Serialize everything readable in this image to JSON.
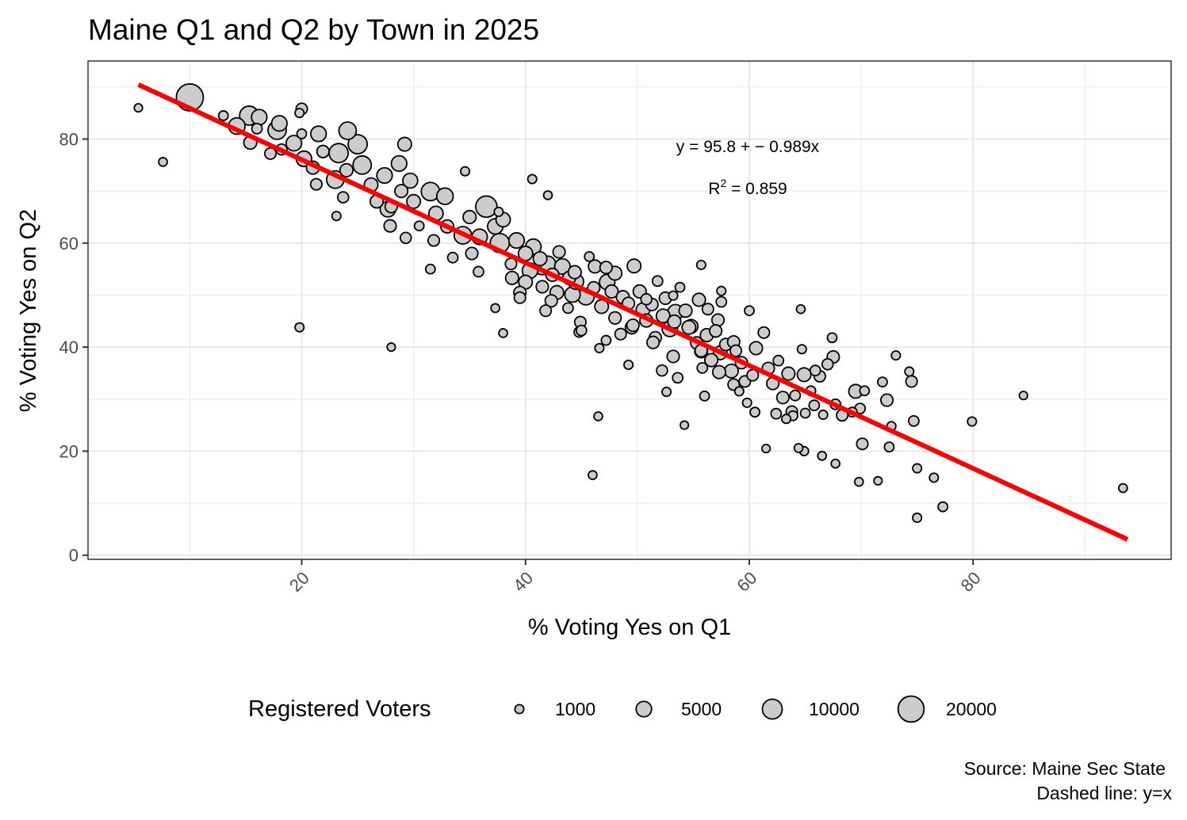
{
  "chart_data": {
    "type": "scatter",
    "title": "Maine Q1 and Q2 by Town in 2025",
    "xlabel": "% Voting Yes on Q1",
    "ylabel": "% Voting Yes on Q2",
    "xlim": [
      0.9,
      97.7
    ],
    "ylim": [
      -0.8,
      95
    ],
    "x_ticks": [
      20,
      40,
      60,
      80
    ],
    "x_tick_labels": [
      "20",
      "40",
      "60",
      "80"
    ],
    "y_ticks": [
      0,
      20,
      40,
      60,
      80
    ],
    "y_tick_labels": [
      "0",
      "20",
      "40",
      "60",
      "80"
    ],
    "grid": true,
    "fit": {
      "intercept": 95.8,
      "slope": -0.989,
      "x_range": [
        5.4,
        93.8
      ],
      "color": "#FF0000"
    },
    "annotations": {
      "equation": "y = 95.8 + − 0.989x",
      "r2_label": "R",
      "r2_sup": "2",
      "r2_value": " = 0.859"
    },
    "legend": {
      "title": "Registered Voters",
      "placement": "bottom",
      "entries": [
        {
          "label": "1000",
          "value": 1000
        },
        {
          "label": "5000",
          "value": 5000
        },
        {
          "label": "10000",
          "value": 10000
        },
        {
          "label": "20000",
          "value": 20000
        }
      ]
    },
    "point_fill": "#CCCCCC",
    "point_stroke": "#000000",
    "caption_lines": [
      "Source: Maine Sec State",
      "Dashed line: y=x"
    ],
    "points": [
      [
        5.4,
        86,
        800
      ],
      [
        7.6,
        75.6,
        900
      ],
      [
        10,
        88,
        22000
      ],
      [
        13,
        84.5,
        1200
      ],
      [
        14.2,
        82.5,
        6000
      ],
      [
        15.3,
        84.5,
        9000
      ],
      [
        16.2,
        84.2,
        5000
      ],
      [
        15.4,
        79.3,
        3000
      ],
      [
        16,
        82,
        1500
      ],
      [
        17.2,
        77.2,
        2000
      ],
      [
        17.8,
        81.7,
        8000
      ],
      [
        18,
        83,
        5000
      ],
      [
        18.2,
        78,
        1800
      ],
      [
        19.3,
        79.2,
        5000
      ],
      [
        20,
        85.8,
        2000
      ],
      [
        19.8,
        85,
        1000
      ],
      [
        20,
        81,
        1200
      ],
      [
        20.2,
        76.2,
        5000
      ],
      [
        21,
        74.5,
        3000
      ],
      [
        21.3,
        71.3,
        2000
      ],
      [
        21.9,
        77.6,
        2500
      ],
      [
        21.5,
        81,
        5000
      ],
      [
        23,
        72.2,
        7000
      ],
      [
        23.3,
        77.3,
        9000
      ],
      [
        24.1,
        81.6,
        7000
      ],
      [
        24,
        74,
        3000
      ],
      [
        23.7,
        68.8,
        1800
      ],
      [
        23.1,
        65.2,
        1000
      ],
      [
        25,
        79,
        9000
      ],
      [
        25.4,
        75,
        8000
      ],
      [
        26.2,
        71.2,
        3500
      ],
      [
        26.7,
        68,
        3000
      ],
      [
        27.4,
        73,
        5000
      ],
      [
        27.7,
        66.5,
        5000
      ],
      [
        28,
        67,
        2500
      ],
      [
        27.9,
        63.3,
        2500
      ],
      [
        28.9,
        70,
        3000
      ],
      [
        28.7,
        75.3,
        5000
      ],
      [
        29.2,
        79,
        3500
      ],
      [
        29.7,
        72,
        4500
      ],
      [
        30,
        68,
        3500
      ],
      [
        29.3,
        61,
        1800
      ],
      [
        30.5,
        63.3,
        1200
      ],
      [
        31.5,
        69.9,
        8000
      ],
      [
        32,
        65.7,
        4000
      ],
      [
        32.8,
        69,
        6000
      ],
      [
        33,
        63.2,
        3000
      ],
      [
        31.8,
        60.5,
        2000
      ],
      [
        31.5,
        55,
        1200
      ],
      [
        33.5,
        57.2,
        1500
      ],
      [
        34.4,
        61.5,
        7000
      ],
      [
        35,
        65,
        3000
      ],
      [
        34.6,
        73.8,
        1000
      ],
      [
        35.2,
        58,
        2500
      ],
      [
        35.9,
        61.2,
        5000
      ],
      [
        35.8,
        54.5,
        1500
      ],
      [
        36.5,
        67,
        12000
      ],
      [
        37.3,
        63.2,
        5000
      ],
      [
        37.7,
        60,
        9000
      ],
      [
        38,
        64.5,
        4000
      ],
      [
        38.7,
        56,
        2000
      ],
      [
        39.2,
        60.5,
        5000
      ],
      [
        38.8,
        53.3,
        3000
      ],
      [
        39.5,
        49.5,
        2000
      ],
      [
        40,
        58,
        4000
      ],
      [
        40,
        52.5,
        3500
      ],
      [
        40.4,
        54.7,
        5000
      ],
      [
        40.7,
        59.3,
        5000
      ],
      [
        41.3,
        57,
        3500
      ],
      [
        41.5,
        51.6,
        2500
      ],
      [
        42,
        56,
        5000
      ],
      [
        42.3,
        48.9,
        2500
      ],
      [
        42.8,
        50.5,
        3500
      ],
      [
        43,
        58.3,
        2500
      ],
      [
        43.3,
        55.5,
        5000
      ],
      [
        43.9,
        53.3,
        3000
      ],
      [
        44.2,
        50.1,
        5000
      ],
      [
        44.4,
        54.4,
        3000
      ],
      [
        44.9,
        44.8,
        2000
      ],
      [
        45.4,
        49.7,
        6000
      ],
      [
        45.7,
        57.4,
        1200
      ],
      [
        46.2,
        55.5,
        3000
      ],
      [
        46.1,
        51.4,
        2500
      ],
      [
        46.8,
        47.8,
        3500
      ],
      [
        47.2,
        55.3,
        2500
      ],
      [
        47.3,
        52.5,
        5000
      ],
      [
        47.7,
        50.7,
        3000
      ],
      [
        48,
        45.6,
        2500
      ],
      [
        48.5,
        42.5,
        2000
      ],
      [
        48.7,
        49.6,
        3000
      ],
      [
        49.2,
        48.4,
        2500
      ],
      [
        49.7,
        55.6,
        3500
      ],
      [
        49.5,
        43.8,
        3000
      ],
      [
        50.2,
        50.7,
        3000
      ],
      [
        50.5,
        47.2,
        3500
      ],
      [
        50.8,
        45.1,
        3000
      ],
      [
        51.3,
        48.2,
        2500
      ],
      [
        51.6,
        41.8,
        2500
      ],
      [
        51.8,
        52.7,
        1500
      ],
      [
        52.3,
        46,
        3500
      ],
      [
        52.5,
        49.4,
        2500
      ],
      [
        52.9,
        43.5,
        5000
      ],
      [
        53.3,
        44.9,
        3000
      ],
      [
        53.8,
        51.5,
        1200
      ],
      [
        54.3,
        47,
        3000
      ],
      [
        54.8,
        44,
        3500
      ],
      [
        55.3,
        40.8,
        2500
      ],
      [
        55.7,
        39.3,
        2500
      ],
      [
        56.2,
        42.3,
        3000
      ],
      [
        56.6,
        37.5,
        3000
      ],
      [
        57.2,
        45.2,
        2500
      ],
      [
        57.5,
        48.7,
        1500
      ],
      [
        57.4,
        38.9,
        3500
      ],
      [
        57.9,
        40.5,
        2500
      ],
      [
        58.4,
        35.4,
        3500
      ],
      [
        58.8,
        39.3,
        2000
      ],
      [
        59.3,
        37,
        2500
      ],
      [
        59.6,
        33.4,
        2000
      ],
      [
        60.3,
        34.6,
        2000
      ],
      [
        60.6,
        39.8,
        3000
      ],
      [
        61.3,
        42.8,
        2000
      ],
      [
        61.7,
        35.9,
        2500
      ],
      [
        62.1,
        33,
        2500
      ],
      [
        62.6,
        37.4,
        1500
      ],
      [
        63,
        30.3,
        2500
      ],
      [
        63.5,
        34.9,
        3000
      ],
      [
        63.8,
        27.6,
        2000
      ],
      [
        64.1,
        30.7,
        1500
      ],
      [
        64.7,
        39.6,
        1000
      ],
      [
        64.9,
        34.7,
        3500
      ],
      [
        65.5,
        31.6,
        1200
      ],
      [
        65.9,
        35.5,
        1500
      ],
      [
        66.3,
        34.4,
        2000
      ],
      [
        67,
        36.7,
        1800
      ],
      [
        67.5,
        38.1,
        2500
      ],
      [
        67.4,
        41.8,
        1200
      ],
      [
        67.7,
        29,
        1500
      ],
      [
        68.3,
        26.9,
        2000
      ],
      [
        69.2,
        27.5,
        1200
      ],
      [
        69.5,
        31.5,
        3500
      ],
      [
        69.9,
        28.2,
        1500
      ],
      [
        70.3,
        31.6,
        1200
      ],
      [
        70.1,
        21.4,
        2000
      ],
      [
        71.9,
        33.3,
        1200
      ],
      [
        72.3,
        29.8,
        2500
      ],
      [
        72.5,
        20.8,
        1200
      ],
      [
        72.7,
        24.8,
        1000
      ],
      [
        73.1,
        38.4,
        1000
      ],
      [
        74.3,
        35.3,
        1000
      ],
      [
        74.5,
        33.4,
        2000
      ],
      [
        74.7,
        25.8,
        1500
      ],
      [
        75,
        16.7,
        1000
      ],
      [
        75,
        7.2,
        1000
      ],
      [
        76.5,
        14.9,
        1000
      ],
      [
        77.3,
        9.3,
        1200
      ],
      [
        79.9,
        25.7,
        1000
      ],
      [
        84.5,
        30.7,
        800
      ],
      [
        93.4,
        12.9,
        900
      ],
      [
        71.5,
        14.3,
        800
      ],
      [
        69.8,
        14.1,
        900
      ],
      [
        67.7,
        17.6,
        900
      ],
      [
        66.5,
        19.1,
        900
      ],
      [
        64.9,
        20,
        1000
      ],
      [
        64.4,
        20.6,
        900
      ],
      [
        61.5,
        20.5,
        800
      ],
      [
        54.2,
        25,
        800
      ],
      [
        46.5,
        26.7,
        900
      ],
      [
        46,
        15.4,
        900
      ],
      [
        49.2,
        36.6,
        1000
      ],
      [
        52.6,
        31.4,
        1000
      ],
      [
        56,
        30.6,
        1200
      ],
      [
        59.1,
        31.5,
        1000
      ],
      [
        59.8,
        29.3,
        1000
      ],
      [
        60.5,
        27.5,
        1200
      ],
      [
        62.4,
        27.2,
        1500
      ],
      [
        63.3,
        26.2,
        1000
      ],
      [
        63.9,
        26.8,
        1200
      ],
      [
        65,
        27.3,
        1200
      ],
      [
        66.6,
        27,
        1000
      ],
      [
        65.8,
        28.8,
        1500
      ],
      [
        60,
        47,
        1200
      ],
      [
        64.6,
        47.3,
        900
      ],
      [
        55.7,
        55.8,
        1000
      ],
      [
        57.5,
        50.8,
        1000
      ],
      [
        53.2,
        49.9,
        1000
      ],
      [
        47.2,
        41.3,
        1200
      ],
      [
        46.6,
        39.8,
        1000
      ],
      [
        44.8,
        42.9,
        1500
      ],
      [
        42,
        69.2,
        900
      ],
      [
        40.6,
        72.3,
        1000
      ],
      [
        37.6,
        66,
        1000
      ],
      [
        38,
        42.7,
        900
      ],
      [
        37.3,
        47.5,
        900
      ],
      [
        28,
        40,
        800
      ],
      [
        19.8,
        43.8,
        1000
      ],
      [
        41.8,
        47,
        2000
      ],
      [
        43.8,
        47.5,
        1500
      ],
      [
        50.8,
        49.2,
        1800
      ],
      [
        53.2,
        38.2,
        2500
      ],
      [
        53.6,
        34.1,
        1500
      ],
      [
        55.8,
        36,
        1500
      ],
      [
        57.3,
        35.2,
        3000
      ],
      [
        58.6,
        32.8,
        2000
      ],
      [
        53.4,
        46.7,
        5000
      ],
      [
        54.6,
        43.8,
        3500
      ],
      [
        56.3,
        47.3,
        2000
      ],
      [
        55.5,
        49.1,
        3000
      ],
      [
        48,
        54.2,
        3500
      ],
      [
        44.5,
        52.6,
        5000
      ],
      [
        42.4,
        53.9,
        3000
      ],
      [
        41.5,
        55.5,
        6000
      ],
      [
        39.5,
        50.5,
        2500
      ],
      [
        45,
        43.2,
        1500
      ],
      [
        49.6,
        44.2,
        2500
      ],
      [
        51.4,
        40.9,
        2500
      ],
      [
        52.2,
        35.5,
        1800
      ],
      [
        55.7,
        39.2,
        3000
      ],
      [
        57,
        43.1,
        2500
      ],
      [
        58.6,
        41,
        2500
      ]
    ]
  }
}
